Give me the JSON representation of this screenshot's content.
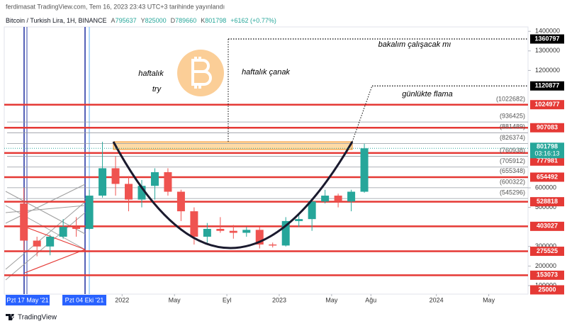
{
  "header": {
    "publisher": "ferdimasat TradingView.com, Tem 16, 2023 23:43 UTC+3 tarihinde yayınlandı"
  },
  "chart_data": {
    "type": "candlestick",
    "title": "Bitcoin / Turkish Lira, 1H, BINANCE",
    "ohlc_legend": [
      {
        "label": "A",
        "value": 795637
      },
      {
        "label": "Y",
        "value": 825000
      },
      {
        "label": "D",
        "value": 789660
      },
      {
        "label": "K",
        "value": 801798
      }
    ],
    "change": "+6162 (+0.77%)",
    "x": [
      "2021-05",
      "2021-06",
      "2021-07",
      "2021-08",
      "2021-09",
      "2021-10",
      "2021-11",
      "2021-12",
      "2022-01",
      "2022-02",
      "2022-03",
      "2022-04",
      "2022-05",
      "2022-06",
      "2022-07",
      "2022-08",
      "2022-09",
      "2022-10",
      "2022-11",
      "2022-12",
      "2023-01",
      "2023-02",
      "2023-03",
      "2023-04",
      "2023-05",
      "2023-06",
      "2023-07"
    ],
    "open": [
      520000,
      330000,
      300000,
      350000,
      400000,
      390000,
      560000,
      700000,
      620000,
      540000,
      610000,
      680000,
      580000,
      480000,
      350000,
      390000,
      380000,
      370000,
      385000,
      310000,
      305000,
      430000,
      440000,
      530000,
      560000,
      530000,
      580000
    ],
    "high": [
      600000,
      350000,
      360000,
      440000,
      450000,
      590000,
      835000,
      760000,
      660000,
      640000,
      700000,
      700000,
      590000,
      500000,
      420000,
      450000,
      410000,
      400000,
      400000,
      320000,
      450000,
      470000,
      540000,
      590000,
      570000,
      590000,
      825000
    ],
    "low": [
      270000,
      250000,
      255000,
      340000,
      350000,
      385000,
      550000,
      560000,
      480000,
      500000,
      540000,
      560000,
      430000,
      310000,
      320000,
      370000,
      340000,
      350000,
      290000,
      295000,
      300000,
      400000,
      380000,
      520000,
      500000,
      480000,
      575000
    ],
    "close": [
      330000,
      300000,
      350000,
      400000,
      390000,
      560000,
      700000,
      620000,
      540000,
      610000,
      680000,
      580000,
      480000,
      350000,
      390000,
      380000,
      370000,
      385000,
      310000,
      305000,
      430000,
      440000,
      530000,
      560000,
      530000,
      580000,
      801798
    ],
    "up_color": "#26a69a",
    "down_color": "#ef5350",
    "xlim": [
      "2021-04",
      "2024-08"
    ],
    "xticks": [
      {
        "value": "2022-01",
        "label": "2022"
      },
      {
        "value": "2022-05",
        "label": "May"
      },
      {
        "value": "2022-09",
        "label": "Eyl"
      },
      {
        "value": "2023-01",
        "label": "2023"
      },
      {
        "value": "2023-05",
        "label": "May"
      },
      {
        "value": "2023-08",
        "label": "Ağu"
      },
      {
        "value": "2024-01",
        "label": "2024"
      },
      {
        "value": "2024-05",
        "label": "May"
      }
    ],
    "ylim": [
      56500,
      1422500
    ],
    "yticks": [
      100000,
      200000,
      300000,
      500000,
      600000,
      1200000,
      1300000,
      1400000
    ],
    "grid": false,
    "last_price": 801798,
    "countdown": "03:16:13",
    "levels": [
      {
        "value": 1360797,
        "color": "#000000",
        "style": "dotted"
      },
      {
        "value": 1120877,
        "color": "#000000",
        "style": "dotted"
      },
      {
        "value": 1024977,
        "color": "#e53935",
        "style": "solid"
      },
      {
        "value": 907083,
        "color": "#e53935",
        "style": "solid"
      },
      {
        "value": 777981,
        "color": "#e53935",
        "style": "solid"
      },
      {
        "value": 654492,
        "color": "#e53935",
        "style": "solid"
      },
      {
        "value": 528818,
        "color": "#e53935",
        "style": "solid"
      },
      {
        "value": 403027,
        "color": "#e53935",
        "style": "solid"
      },
      {
        "value": 275525,
        "color": "#e53935",
        "style": "solid"
      },
      {
        "value": 153073,
        "color": "#e53935",
        "style": "solid"
      },
      {
        "value": 25000,
        "color": "#e53935",
        "style": "solid"
      }
    ],
    "fib_levels": [
      {
        "value": 1022682,
        "label": "(1022682)"
      },
      {
        "value": 936425,
        "label": "(936425)"
      },
      {
        "value": 881489,
        "label": "(881489)"
      },
      {
        "value": 826374,
        "label": "(826374)"
      },
      {
        "value": 760938,
        "label": "(760938)"
      },
      {
        "value": 705912,
        "label": "(705912)"
      },
      {
        "value": 655348,
        "label": "(655348)"
      },
      {
        "value": 600322,
        "label": "(600322)"
      },
      {
        "value": 545296,
        "label": "(545296)"
      }
    ],
    "cursor_dates": [
      "Pzt 17 May '21",
      "Pzt 04 Eki '21"
    ],
    "annotations": [
      {
        "text": "bakalım çalışacak mı"
      },
      {
        "text": "haftalık çanak"
      },
      {
        "text": "haftalık"
      },
      {
        "text": "try"
      },
      {
        "text": "günlükte flama"
      }
    ]
  },
  "footer": {
    "brand": "TradingView"
  }
}
